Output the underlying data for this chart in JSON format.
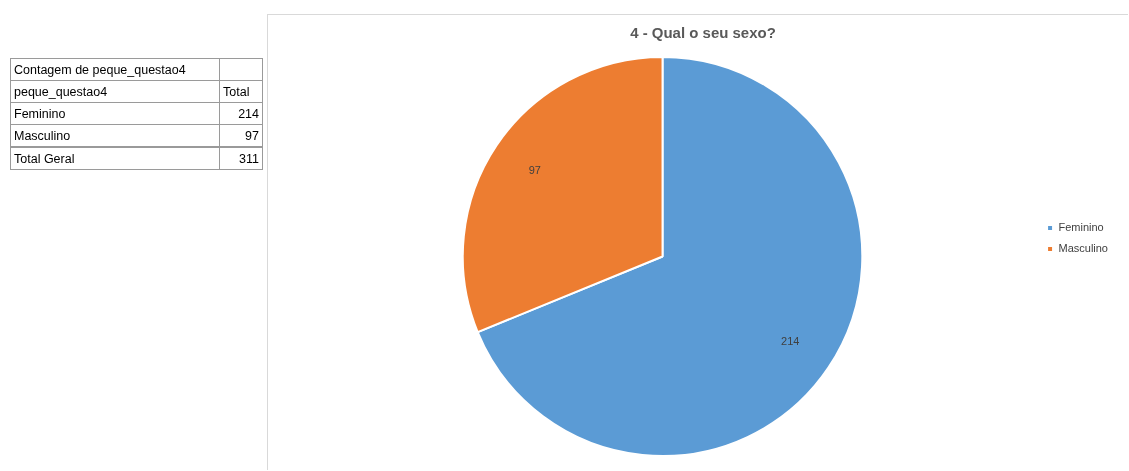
{
  "chart_data": [
    {
      "type": "other",
      "title": "Contagem de peque_questao4",
      "xlabel": "peque_questao4",
      "ylabel": "Total",
      "categories": [
        "Feminino",
        "Masculino",
        "Total Geral"
      ],
      "values": [
        214,
        97,
        311
      ],
      "data_labels": true
    },
    {
      "type": "pie",
      "title": "4 - Qual o seu sexo?",
      "categories": [
        "Feminino",
        "Masculino"
      ],
      "values": [
        214,
        97
      ],
      "colors": [
        "#5b9bd5",
        "#ed7d31"
      ],
      "data_labels": true,
      "legend": "right"
    }
  ]
}
